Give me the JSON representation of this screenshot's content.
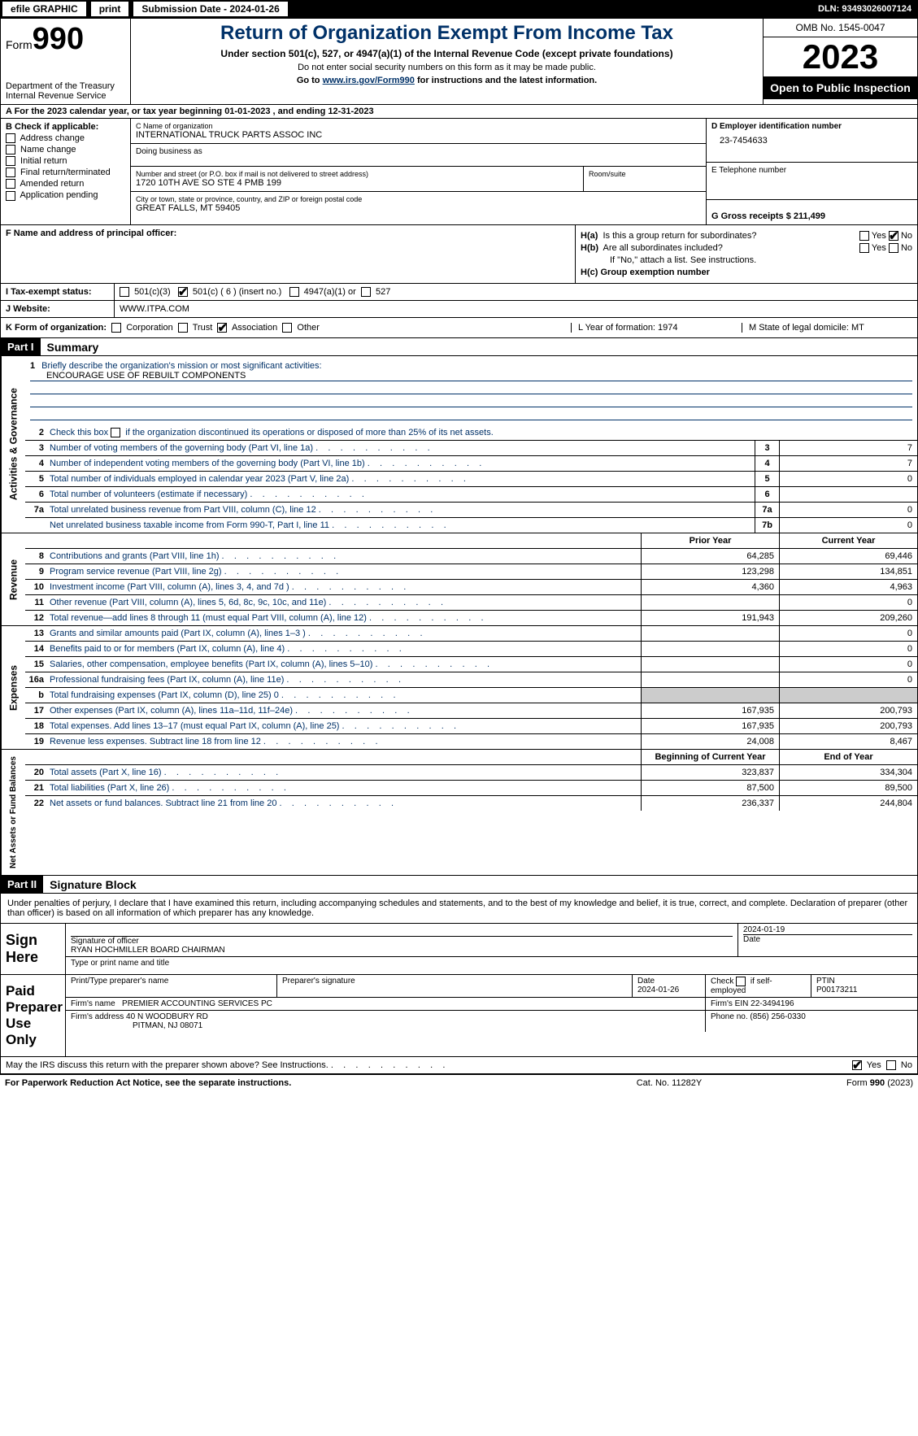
{
  "topbar": {
    "efile": "efile GRAPHIC",
    "print": "print",
    "submission": "Submission Date - 2024-01-26",
    "dln": "DLN: 93493026007124"
  },
  "header": {
    "form": "Form",
    "form_num": "990",
    "dept": "Department of the Treasury",
    "irs": "Internal Revenue Service",
    "title": "Return of Organization Exempt From Income Tax",
    "subtitle": "Under section 501(c), 527, or 4947(a)(1) of the Internal Revenue Code (except private foundations)",
    "sub2": "Do not enter social security numbers on this form as it may be made public.",
    "sub3_pre": "Go to ",
    "sub3_link": "www.irs.gov/Form990",
    "sub3_post": " for instructions and the latest information.",
    "omb": "OMB No. 1545-0047",
    "year": "2023",
    "inspect": "Open to Public Inspection"
  },
  "row_a": "A  For the 2023 calendar year, or tax year beginning 01-01-2023   , and ending 12-31-2023",
  "col_b": {
    "label": "B Check if applicable:",
    "items": [
      "Address change",
      "Name change",
      "Initial return",
      "Final return/terminated",
      "Amended return",
      "Application pending"
    ]
  },
  "col_c": {
    "name_label": "C Name of organization",
    "name": "INTERNATIONAL TRUCK PARTS ASSOC INC",
    "dba_label": "Doing business as",
    "addr_label": "Number and street (or P.O. box if mail is not delivered to street address)",
    "addr": "1720 10TH AVE SO STE 4 PMB 199",
    "room_label": "Room/suite",
    "city_label": "City or town, state or province, country, and ZIP or foreign postal code",
    "city": "GREAT FALLS, MT  59405"
  },
  "col_d": {
    "ein_label": "D Employer identification number",
    "ein": "23-7454633",
    "phone_label": "E Telephone number",
    "gross_label": "G Gross receipts $ 211,499"
  },
  "f": {
    "label": "F  Name and address of principal officer:",
    "ha": "H(a)  Is this a group return for subordinates?",
    "hb": "H(b)  Are all subordinates included?",
    "hb_note": "If \"No,\" attach a list. See instructions.",
    "hc": "H(c)  Group exemption number",
    "yes": "Yes",
    "no": "No"
  },
  "tax": {
    "label": "I   Tax-exempt status:",
    "c3": "501(c)(3)",
    "c": "501(c) ( 6 ) (insert no.)",
    "a1": "4947(a)(1) or",
    "s527": "527",
    "web_label": "J   Website:",
    "web": " WWW.ITPA.COM"
  },
  "k": {
    "label": "K Form of organization:",
    "corp": "Corporation",
    "trust": "Trust",
    "assoc": "Association",
    "other": "Other",
    "l": "L Year of formation: 1974",
    "m": "M State of legal domicile: MT"
  },
  "part1": {
    "header": "Part I",
    "title": "Summary",
    "mission_label": "Briefly describe the organization's mission or most significant activities:",
    "mission": "ENCOURAGE USE OF REBUILT COMPONENTS",
    "line2": "Check this box      if the organization discontinued its operations or disposed of more than 25% of its net assets.",
    "lines": [
      {
        "n": "3",
        "d": "Number of voting members of the governing body (Part VI, line 1a)",
        "c": "3",
        "v": "7"
      },
      {
        "n": "4",
        "d": "Number of independent voting members of the governing body (Part VI, line 1b)",
        "c": "4",
        "v": "7"
      },
      {
        "n": "5",
        "d": "Total number of individuals employed in calendar year 2023 (Part V, line 2a)",
        "c": "5",
        "v": "0"
      },
      {
        "n": "6",
        "d": "Total number of volunteers (estimate if necessary)",
        "c": "6",
        "v": ""
      },
      {
        "n": "7a",
        "d": "Total unrelated business revenue from Part VIII, column (C), line 12",
        "c": "7a",
        "v": "0"
      },
      {
        "n": "",
        "d": "Net unrelated business taxable income from Form 990-T, Part I, line 11",
        "c": "7b",
        "v": "0"
      }
    ],
    "prior_year": "Prior Year",
    "current_year": "Current Year",
    "revenue": [
      {
        "n": "8",
        "d": "Contributions and grants (Part VIII, line 1h)",
        "p": "64,285",
        "c": "69,446"
      },
      {
        "n": "9",
        "d": "Program service revenue (Part VIII, line 2g)",
        "p": "123,298",
        "c": "134,851"
      },
      {
        "n": "10",
        "d": "Investment income (Part VIII, column (A), lines 3, 4, and 7d )",
        "p": "4,360",
        "c": "4,963"
      },
      {
        "n": "11",
        "d": "Other revenue (Part VIII, column (A), lines 5, 6d, 8c, 9c, 10c, and 11e)",
        "p": "",
        "c": "0"
      },
      {
        "n": "12",
        "d": "Total revenue—add lines 8 through 11 (must equal Part VIII, column (A), line 12)",
        "p": "191,943",
        "c": "209,260"
      }
    ],
    "expenses": [
      {
        "n": "13",
        "d": "Grants and similar amounts paid (Part IX, column (A), lines 1–3 )",
        "p": "",
        "c": "0"
      },
      {
        "n": "14",
        "d": "Benefits paid to or for members (Part IX, column (A), line 4)",
        "p": "",
        "c": "0"
      },
      {
        "n": "15",
        "d": "Salaries, other compensation, employee benefits (Part IX, column (A), lines 5–10)",
        "p": "",
        "c": "0"
      },
      {
        "n": "16a",
        "d": "Professional fundraising fees (Part IX, column (A), line 11e)",
        "p": "",
        "c": "0"
      },
      {
        "n": "b",
        "d": "Total fundraising expenses (Part IX, column (D), line 25) 0",
        "p": "grey",
        "c": "grey"
      },
      {
        "n": "17",
        "d": "Other expenses (Part IX, column (A), lines 11a–11d, 11f–24e)",
        "p": "167,935",
        "c": "200,793"
      },
      {
        "n": "18",
        "d": "Total expenses. Add lines 13–17 (must equal Part IX, column (A), line 25)",
        "p": "167,935",
        "c": "200,793"
      },
      {
        "n": "19",
        "d": "Revenue less expenses. Subtract line 18 from line 12",
        "p": "24,008",
        "c": "8,467"
      }
    ],
    "begin_year": "Beginning of Current Year",
    "end_year": "End of Year",
    "netassets": [
      {
        "n": "20",
        "d": "Total assets (Part X, line 16)",
        "p": "323,837",
        "c": "334,304"
      },
      {
        "n": "21",
        "d": "Total liabilities (Part X, line 26)",
        "p": "87,500",
        "c": "89,500"
      },
      {
        "n": "22",
        "d": "Net assets or fund balances. Subtract line 21 from line 20",
        "p": "236,337",
        "c": "244,804"
      }
    ],
    "side_gov": "Activities & Governance",
    "side_rev": "Revenue",
    "side_exp": "Expenses",
    "side_net": "Net Assets or Fund Balances"
  },
  "part2": {
    "header": "Part II",
    "title": "Signature Block",
    "decl": "Under penalties of perjury, I declare that I have examined this return, including accompanying schedules and statements, and to the best of my knowledge and belief, it is true, correct, and complete. Declaration of preparer (other than officer) is based on all information of which preparer has any knowledge.",
    "sign_here": "Sign Here",
    "sig_officer": "Signature of officer",
    "officer_name": "RYAN HOCHMILLER  BOARD CHAIRMAN",
    "type_name": "Type or print name and title",
    "date": "Date",
    "date_val": "2024-01-19",
    "paid": "Paid Preparer Use Only",
    "prep_name_label": "Print/Type preparer's name",
    "prep_sig_label": "Preparer's signature",
    "prep_date": "2024-01-26",
    "check_self": "Check        if self-employed",
    "ptin_label": "PTIN",
    "ptin": "P00173211",
    "firm_name_label": "Firm's name",
    "firm_name": "PREMIER ACCOUNTING SERVICES PC",
    "firm_ein_label": "Firm's EIN",
    "firm_ein": "22-3494196",
    "firm_addr_label": "Firm's address",
    "firm_addr": "40 N WOODBURY RD",
    "firm_city": "PITMAN, NJ  08071",
    "phone_label": "Phone no.",
    "phone": "(856) 256-0330",
    "discuss": "May the IRS discuss this return with the preparer shown above? See Instructions."
  },
  "footer": {
    "left": "For Paperwork Reduction Act Notice, see the separate instructions.",
    "mid": "Cat. No. 11282Y",
    "right": "Form 990 (2023)"
  }
}
